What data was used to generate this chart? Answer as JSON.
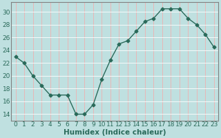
{
  "x": [
    0,
    1,
    2,
    3,
    4,
    5,
    6,
    7,
    8,
    9,
    10,
    11,
    12,
    13,
    14,
    15,
    16,
    17,
    18,
    19,
    20,
    21,
    22,
    23
  ],
  "y": [
    23,
    22,
    20,
    18.5,
    17,
    17,
    17,
    14,
    14,
    15.5,
    19.5,
    22.5,
    25,
    25.5,
    27,
    28.5,
    29,
    30.5,
    30.5,
    30.5,
    29,
    28,
    26.5,
    24.5
  ],
  "line_color": "#2a6a5a",
  "marker": "D",
  "marker_size": 2.5,
  "background_color": "#bfe0e0",
  "grid_color_h": "#ffffff",
  "grid_color_v": "#f0b0b0",
  "xlabel": "Humidex (Indice chaleur)",
  "xlim": [
    -0.5,
    23.5
  ],
  "ylim": [
    13,
    31.5
  ],
  "yticks": [
    14,
    16,
    18,
    20,
    22,
    24,
    26,
    28,
    30
  ],
  "xticks": [
    0,
    1,
    2,
    3,
    4,
    5,
    6,
    7,
    8,
    9,
    10,
    11,
    12,
    13,
    14,
    15,
    16,
    17,
    18,
    19,
    20,
    21,
    22,
    23
  ],
  "tick_fontsize": 6.5,
  "xlabel_fontsize": 7.5,
  "tick_color": "#2a6a5a",
  "spine_color": "#808080"
}
